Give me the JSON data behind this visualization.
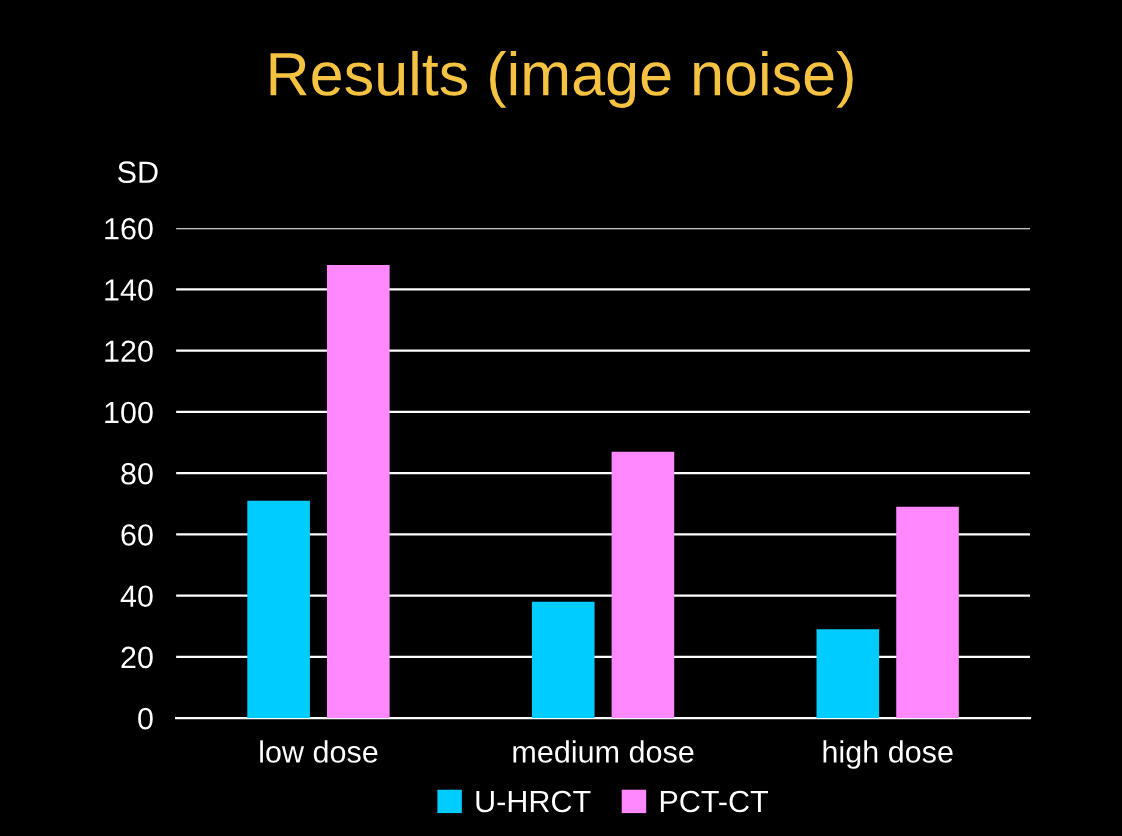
{
  "chart_data": {
    "type": "bar",
    "title": "Results (image noise)",
    "ylabel": "SD",
    "categories": [
      "low dose",
      "medium dose",
      "high dose"
    ],
    "series": [
      {
        "name": "U-HRCT",
        "color": "#00ccff",
        "values": [
          71,
          38,
          29
        ]
      },
      {
        "name": "PCT-CT",
        "color": "#ff88ff",
        "values": [
          148,
          87,
          69
        ]
      }
    ],
    "ylim": [
      0,
      160
    ],
    "yticks": [
      0,
      20,
      40,
      60,
      80,
      100,
      120,
      140,
      160
    ],
    "grid": "y",
    "legend": "bottom"
  }
}
